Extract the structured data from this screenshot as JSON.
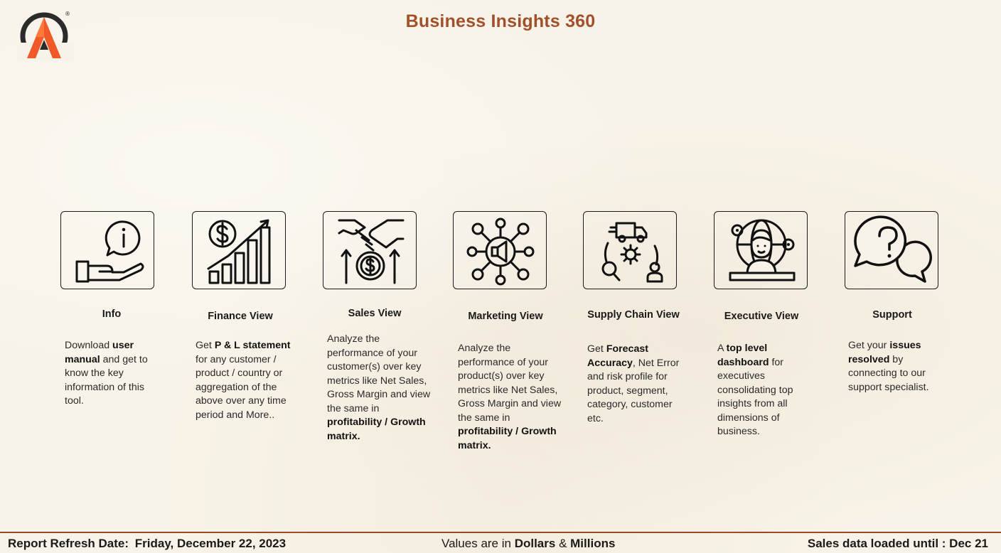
{
  "header": {
    "title": "Business Insights 360",
    "logo_mark": "®"
  },
  "cards": [
    {
      "title": "Info",
      "icon": "info-hand-icon",
      "desc": [
        {
          "t": "Download ",
          "b": false
        },
        {
          "t": "user manual",
          "b": true
        },
        {
          "t": " and get to know the key information of this tool.",
          "b": false
        }
      ]
    },
    {
      "title": "Finance View",
      "icon": "finance-growth-icon",
      "desc": [
        {
          "t": "Get  ",
          "b": false
        },
        {
          "t": "P & L statement",
          "b": true
        },
        {
          "t": " for any customer / product / country or aggregation of the above over any time period and More..",
          "b": false
        }
      ]
    },
    {
      "title": "Sales View",
      "icon": "handshake-money-icon",
      "desc": [
        {
          "t": "Analyze the performance of your customer(s) over key metrics like Net Sales, Gross Margin and view the same in ",
          "b": false
        },
        {
          "t": "profitability / Growth matrix.",
          "b": true
        }
      ]
    },
    {
      "title": "Marketing View",
      "icon": "megaphone-network-icon",
      "desc": [
        {
          "t": "Analyze the performance of your product(s) over key metrics like Net Sales, Gross Margin and view the same in ",
          "b": false
        },
        {
          "t": "profitability / Growth matrix.",
          "b": true
        }
      ]
    },
    {
      "title": "Supply Chain View",
      "icon": "supply-chain-icon",
      "desc": [
        {
          "t": "Get ",
          "b": false
        },
        {
          "t": "Forecast Accuracy",
          "b": true
        },
        {
          "t": ", Net Error and risk profile for product, segment, category, customer etc.",
          "b": false
        }
      ]
    },
    {
      "title": "Executive View",
      "icon": "executive-globe-icon",
      "desc": [
        {
          "t": "A ",
          "b": false
        },
        {
          "t": "top level dashboard",
          "b": true
        },
        {
          "t": " for executives consolidating top insights from all dimensions of business.",
          "b": false
        }
      ]
    },
    {
      "title": "Support",
      "icon": "chat-question-icon",
      "desc": [
        {
          "t": "Get your ",
          "b": false
        },
        {
          "t": "issues resolved",
          "b": true
        },
        {
          "t": " by connecting to our support specialist.",
          "b": false
        }
      ]
    }
  ],
  "footer": {
    "refresh_label": "Report Refresh Date:",
    "refresh_date": "Friday, December 22, 2023",
    "values_prefix": "Values are in ",
    "values_unit1": "Dollars",
    "values_amp": " & ",
    "values_unit2": "Millions",
    "sales_loaded": "Sales data loaded until : Dec 21"
  },
  "colors": {
    "title": "#a0502a",
    "background": "#f8f3e8",
    "footer_line": "#9a4a2a",
    "logo_orange": "#f05a28",
    "logo_dark": "#2b2b2b"
  }
}
